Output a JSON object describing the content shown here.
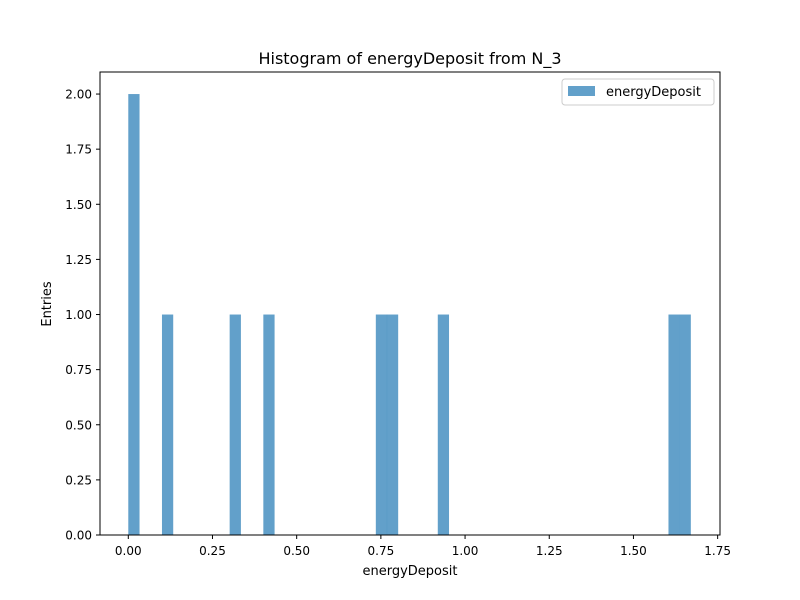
{
  "chart_data": {
    "type": "bar",
    "title": "Histogram of energyDeposit from N_3",
    "xlabel": "energyDeposit",
    "ylabel": "Entries",
    "xlim": [
      -0.084,
      1.757
    ],
    "ylim": [
      0,
      2.1
    ],
    "x_ticks": [
      "0.00",
      "0.25",
      "0.50",
      "0.75",
      "1.00",
      "1.25",
      "1.50",
      "1.75"
    ],
    "y_ticks": [
      "0.00",
      "0.25",
      "0.50",
      "0.75",
      "1.00",
      "1.25",
      "1.50",
      "1.75",
      "2.00"
    ],
    "bin_width": 0.0334,
    "bars": [
      {
        "x0": 0.0,
        "value": 2
      },
      {
        "x0": 0.1,
        "value": 1
      },
      {
        "x0": 0.301,
        "value": 1
      },
      {
        "x0": 0.401,
        "value": 1
      },
      {
        "x0": 0.735,
        "value": 1
      },
      {
        "x0": 0.768,
        "value": 1
      },
      {
        "x0": 0.919,
        "value": 1
      },
      {
        "x0": 1.604,
        "value": 1
      },
      {
        "x0": 1.637,
        "value": 1
      }
    ],
    "series": [
      {
        "name": "energyDeposit",
        "color": "#1f77b4",
        "alpha": 0.7
      }
    ],
    "legend": "top-right",
    "grid": false
  }
}
